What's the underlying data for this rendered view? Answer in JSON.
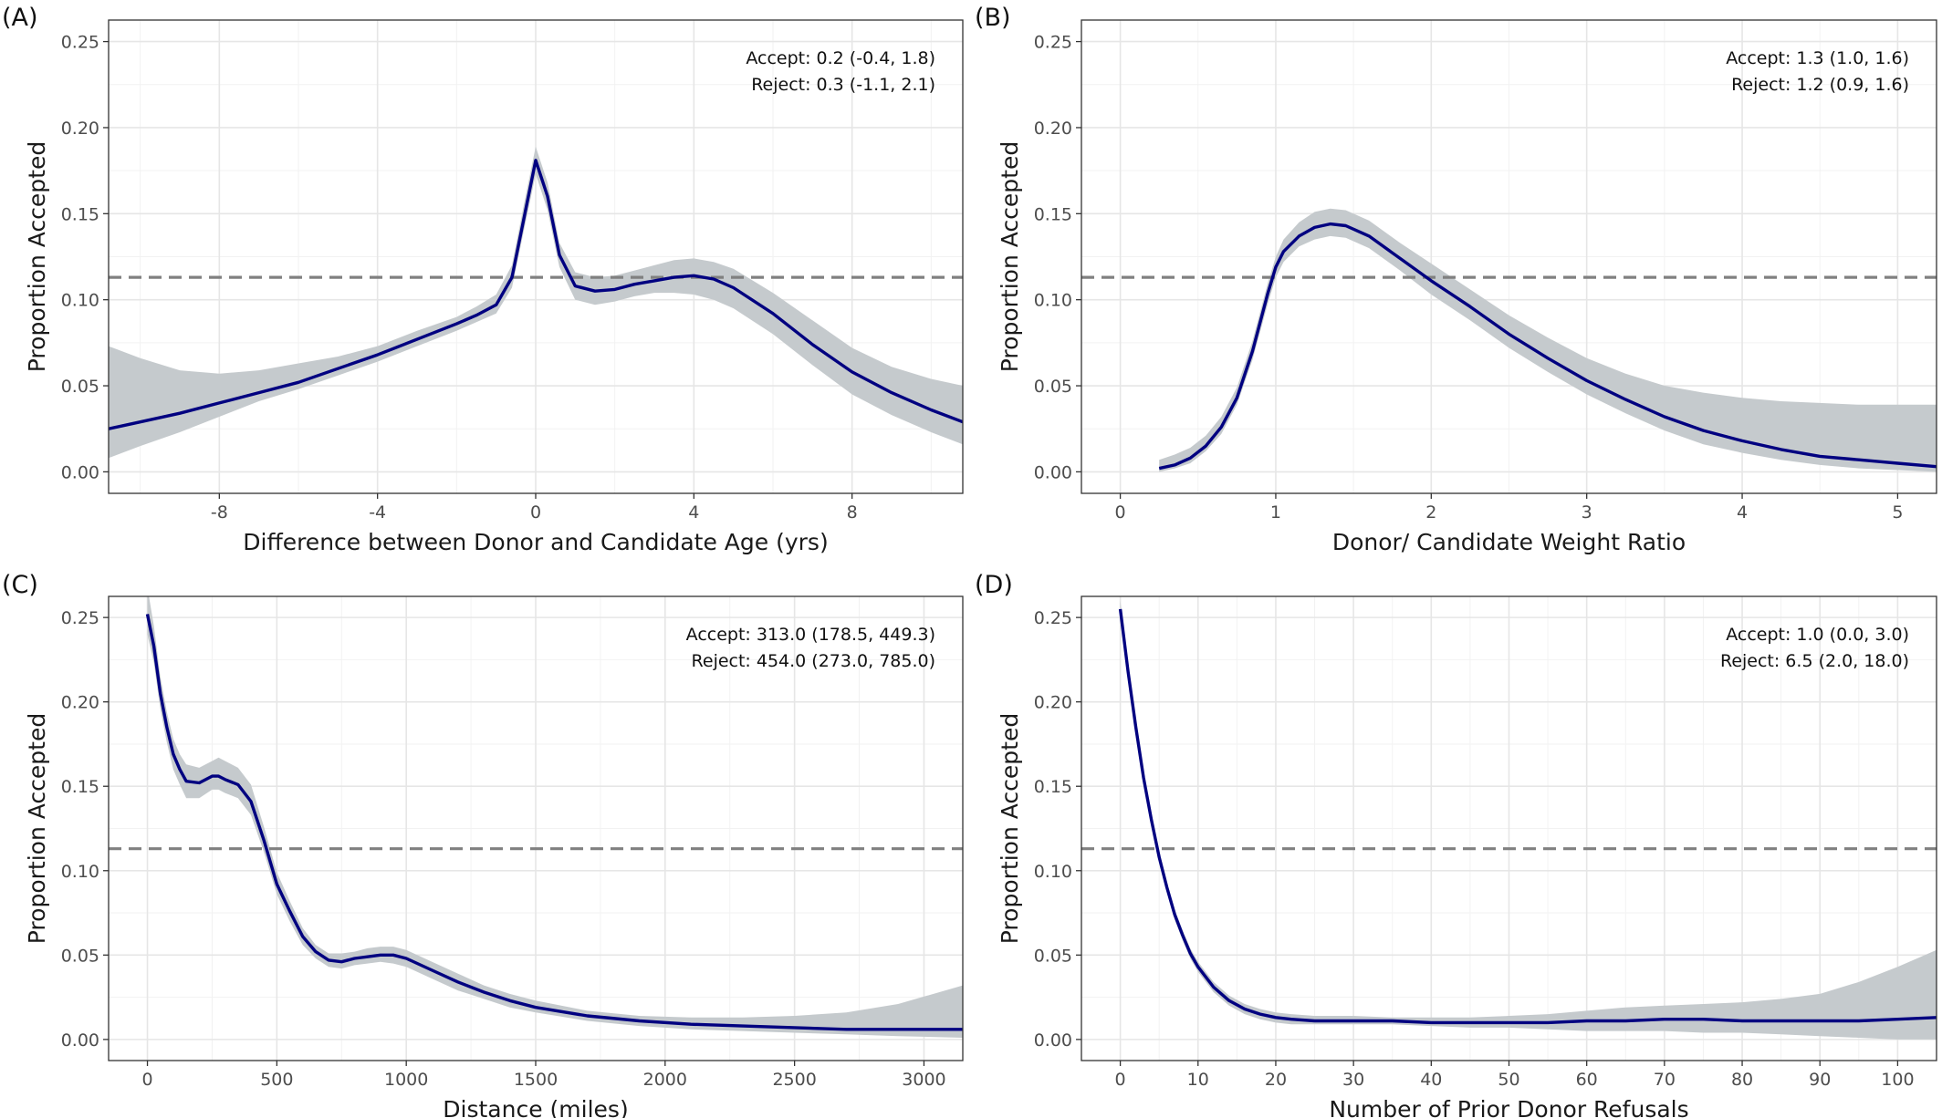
{
  "colors": {
    "line": "#000080",
    "band": "#c5cacd",
    "reference": "#808080",
    "grid_major": "#e6e6e6",
    "grid_minor": "#f2f2f2",
    "frame": "#333333"
  },
  "chart_data": [
    {
      "type": "line",
      "panel": "(A)",
      "xlabel": "Difference between Donor and Candidate Age (yrs)",
      "ylabel": "Proportion Accepted",
      "xlim": [
        -10.8,
        10.8
      ],
      "ylim": [
        -0.0125,
        0.2625
      ],
      "xticks": [
        -8,
        -4,
        0,
        4,
        8
      ],
      "xtick_labels": [
        "-8",
        "-4",
        "0",
        "4",
        "8"
      ],
      "yticks": [
        0,
        0.05,
        0.1,
        0.15,
        0.2,
        0.25
      ],
      "ytick_labels": [
        "0.00",
        "0.05",
        "0.10",
        "0.15",
        "0.20",
        "0.25"
      ],
      "reference_line": 0.113,
      "annotations": [
        "Accept: 0.2 (-0.4, 1.8)",
        "Reject: 0.3 (-1.1, 2.1)"
      ],
      "x": [
        -10.8,
        -10,
        -9,
        -8,
        -7,
        -6,
        -5,
        -4,
        -3,
        -2,
        -1.5,
        -1,
        -0.6,
        -0.3,
        0,
        0.3,
        0.6,
        1,
        1.5,
        2,
        2.5,
        3,
        3.5,
        4,
        4.5,
        5,
        6,
        7,
        8,
        9,
        10,
        10.8
      ],
      "y": [
        0.025,
        0.029,
        0.034,
        0.04,
        0.046,
        0.052,
        0.06,
        0.068,
        0.077,
        0.086,
        0.091,
        0.097,
        0.113,
        0.147,
        0.181,
        0.16,
        0.126,
        0.108,
        0.105,
        0.106,
        0.109,
        0.111,
        0.113,
        0.114,
        0.112,
        0.107,
        0.092,
        0.074,
        0.058,
        0.046,
        0.036,
        0.029
      ],
      "lower": [
        0.008,
        0.015,
        0.023,
        0.032,
        0.041,
        0.048,
        0.056,
        0.064,
        0.073,
        0.082,
        0.087,
        0.092,
        0.107,
        0.14,
        0.173,
        0.152,
        0.119,
        0.1,
        0.097,
        0.099,
        0.102,
        0.104,
        0.104,
        0.103,
        0.1,
        0.095,
        0.08,
        0.062,
        0.045,
        0.033,
        0.023,
        0.016
      ],
      "upper": [
        0.073,
        0.066,
        0.059,
        0.057,
        0.059,
        0.063,
        0.067,
        0.073,
        0.082,
        0.09,
        0.096,
        0.103,
        0.12,
        0.155,
        0.189,
        0.168,
        0.133,
        0.116,
        0.113,
        0.114,
        0.117,
        0.12,
        0.123,
        0.124,
        0.122,
        0.118,
        0.104,
        0.088,
        0.072,
        0.061,
        0.054,
        0.05
      ]
    },
    {
      "type": "line",
      "panel": "(B)",
      "xlabel": "Donor/ Candidate Weight Ratio",
      "ylabel": "Proportion Accepted",
      "xlim": [
        -0.25,
        5.25
      ],
      "ylim": [
        -0.0125,
        0.2625
      ],
      "xticks": [
        0,
        1,
        2,
        3,
        4,
        5
      ],
      "xtick_labels": [
        "0",
        "1",
        "2",
        "3",
        "4",
        "5"
      ],
      "yticks": [
        0,
        0.05,
        0.1,
        0.15,
        0.2,
        0.25
      ],
      "ytick_labels": [
        "0.00",
        "0.05",
        "0.10",
        "0.15",
        "0.20",
        "0.25"
      ],
      "reference_line": 0.113,
      "annotations": [
        "Accept: 1.3 (1.0, 1.6)",
        "Reject: 1.2 (0.9, 1.6)"
      ],
      "x": [
        0.25,
        0.35,
        0.45,
        0.55,
        0.65,
        0.75,
        0.85,
        0.95,
        1.0,
        1.05,
        1.15,
        1.25,
        1.35,
        1.45,
        1.6,
        1.8,
        2.0,
        2.25,
        2.5,
        2.75,
        3.0,
        3.25,
        3.5,
        3.75,
        4.0,
        4.25,
        4.5,
        4.75,
        5.0,
        5.25
      ],
      "y": [
        0.002,
        0.004,
        0.008,
        0.015,
        0.026,
        0.043,
        0.07,
        0.104,
        0.119,
        0.128,
        0.137,
        0.142,
        0.144,
        0.143,
        0.137,
        0.124,
        0.111,
        0.096,
        0.08,
        0.066,
        0.053,
        0.042,
        0.032,
        0.024,
        0.018,
        0.013,
        0.009,
        0.007,
        0.005,
        0.003
      ],
      "lower": [
        0.0,
        0.002,
        0.005,
        0.012,
        0.022,
        0.039,
        0.065,
        0.098,
        0.113,
        0.122,
        0.131,
        0.135,
        0.137,
        0.136,
        0.13,
        0.117,
        0.103,
        0.088,
        0.072,
        0.058,
        0.045,
        0.034,
        0.024,
        0.016,
        0.011,
        0.007,
        0.004,
        0.002,
        0.001,
        0.0
      ],
      "upper": [
        0.007,
        0.01,
        0.014,
        0.021,
        0.032,
        0.049,
        0.076,
        0.11,
        0.125,
        0.135,
        0.145,
        0.151,
        0.153,
        0.152,
        0.146,
        0.133,
        0.121,
        0.106,
        0.091,
        0.078,
        0.066,
        0.057,
        0.05,
        0.046,
        0.043,
        0.041,
        0.04,
        0.039,
        0.039,
        0.039
      ]
    },
    {
      "type": "line",
      "panel": "(C)",
      "xlabel": "Distance (miles)",
      "ylabel": "Proportion Accepted",
      "xlim": [
        -150,
        3150
      ],
      "ylim": [
        -0.0125,
        0.2625
      ],
      "xticks": [
        0,
        500,
        1000,
        1500,
        2000,
        2500,
        3000
      ],
      "xtick_labels": [
        "0",
        "500",
        "1000",
        "1500",
        "2000",
        "2500",
        "3000"
      ],
      "yticks": [
        0,
        0.05,
        0.1,
        0.15,
        0.2,
        0.25
      ],
      "ytick_labels": [
        "0.00",
        "0.05",
        "0.10",
        "0.15",
        "0.20",
        "0.25"
      ],
      "reference_line": 0.113,
      "annotations": [
        "Accept: 313.0 (178.5, 449.3)",
        "Reject: 454.0 (273.0, 785.0)"
      ],
      "x": [
        0,
        25,
        50,
        75,
        100,
        125,
        150,
        200,
        250,
        275,
        300,
        350,
        400,
        450,
        500,
        550,
        600,
        650,
        700,
        750,
        800,
        850,
        900,
        950,
        1000,
        1100,
        1200,
        1300,
        1400,
        1500,
        1700,
        1900,
        2100,
        2300,
        2500,
        2700,
        2900,
        3150
      ],
      "y": [
        0.252,
        0.233,
        0.205,
        0.185,
        0.169,
        0.16,
        0.153,
        0.152,
        0.156,
        0.156,
        0.154,
        0.151,
        0.141,
        0.118,
        0.092,
        0.076,
        0.061,
        0.052,
        0.047,
        0.046,
        0.048,
        0.049,
        0.05,
        0.05,
        0.048,
        0.041,
        0.034,
        0.028,
        0.023,
        0.019,
        0.014,
        0.011,
        0.009,
        0.008,
        0.007,
        0.006,
        0.006,
        0.006
      ],
      "lower": [
        0.24,
        0.223,
        0.196,
        0.176,
        0.16,
        0.151,
        0.143,
        0.143,
        0.148,
        0.148,
        0.146,
        0.143,
        0.133,
        0.111,
        0.086,
        0.07,
        0.056,
        0.048,
        0.043,
        0.042,
        0.044,
        0.045,
        0.046,
        0.045,
        0.043,
        0.036,
        0.029,
        0.024,
        0.019,
        0.016,
        0.011,
        0.008,
        0.006,
        0.005,
        0.004,
        0.003,
        0.002,
        0.001
      ],
      "upper": [
        0.268,
        0.245,
        0.215,
        0.194,
        0.178,
        0.169,
        0.163,
        0.161,
        0.165,
        0.167,
        0.165,
        0.161,
        0.151,
        0.126,
        0.099,
        0.082,
        0.066,
        0.056,
        0.051,
        0.051,
        0.052,
        0.054,
        0.055,
        0.055,
        0.053,
        0.046,
        0.039,
        0.032,
        0.027,
        0.023,
        0.017,
        0.014,
        0.013,
        0.013,
        0.014,
        0.016,
        0.021,
        0.032
      ]
    },
    {
      "type": "line",
      "panel": "(D)",
      "xlabel": "Number of Prior Donor Refusals",
      "ylabel": "Proportion Accepted",
      "xlim": [
        -5,
        105
      ],
      "ylim": [
        -0.0125,
        0.2625
      ],
      "xticks": [
        0,
        10,
        20,
        30,
        40,
        50,
        60,
        70,
        80,
        90,
        100
      ],
      "xtick_labels": [
        "0",
        "10",
        "20",
        "30",
        "40",
        "50",
        "60",
        "70",
        "80",
        "90",
        "100"
      ],
      "yticks": [
        0,
        0.05,
        0.1,
        0.15,
        0.2,
        0.25
      ],
      "ytick_labels": [
        "0.00",
        "0.05",
        "0.10",
        "0.15",
        "0.20",
        "0.25"
      ],
      "reference_line": 0.113,
      "annotations": [
        "Accept: 1.0 (0.0, 3.0)",
        "Reject: 6.5 (2.0, 18.0)"
      ],
      "x": [
        0,
        1,
        2,
        3,
        4,
        5,
        6,
        7,
        8,
        9,
        10,
        12,
        14,
        16,
        18,
        20,
        22,
        25,
        30,
        35,
        40,
        45,
        50,
        55,
        60,
        65,
        70,
        75,
        80,
        85,
        90,
        95,
        100,
        105
      ],
      "y": [
        0.255,
        0.218,
        0.185,
        0.155,
        0.13,
        0.108,
        0.09,
        0.074,
        0.062,
        0.051,
        0.043,
        0.031,
        0.023,
        0.018,
        0.015,
        0.013,
        0.012,
        0.011,
        0.011,
        0.011,
        0.01,
        0.01,
        0.01,
        0.01,
        0.011,
        0.011,
        0.012,
        0.012,
        0.011,
        0.011,
        0.011,
        0.011,
        0.012,
        0.013
      ],
      "lower": [
        0.25,
        0.213,
        0.181,
        0.151,
        0.126,
        0.105,
        0.087,
        0.071,
        0.059,
        0.048,
        0.04,
        0.028,
        0.02,
        0.015,
        0.012,
        0.01,
        0.009,
        0.009,
        0.009,
        0.009,
        0.008,
        0.007,
        0.007,
        0.006,
        0.005,
        0.005,
        0.005,
        0.004,
        0.004,
        0.003,
        0.002,
        0.001,
        0.0,
        0.0
      ],
      "upper": [
        0.26,
        0.223,
        0.189,
        0.159,
        0.134,
        0.112,
        0.093,
        0.077,
        0.065,
        0.054,
        0.046,
        0.034,
        0.026,
        0.021,
        0.018,
        0.016,
        0.015,
        0.014,
        0.014,
        0.013,
        0.013,
        0.013,
        0.014,
        0.015,
        0.017,
        0.019,
        0.02,
        0.021,
        0.022,
        0.024,
        0.027,
        0.034,
        0.043,
        0.053
      ]
    }
  ]
}
